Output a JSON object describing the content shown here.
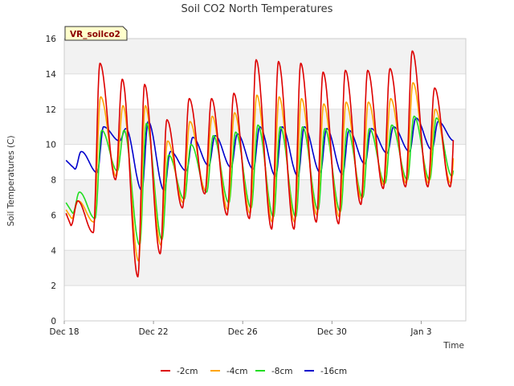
{
  "chart_data": {
    "type": "line",
    "title": "Soil CO2 North Temperatures",
    "badge": "VR_soilco2",
    "xlabel": "Time",
    "ylabel": "Soil Temperatures (C)",
    "ylim": [
      0,
      16
    ],
    "yticks": [
      "0",
      "2",
      "4",
      "6",
      "8",
      "10",
      "12",
      "14",
      "16"
    ],
    "xlim_days": [
      0,
      18
    ],
    "xticks": [
      {
        "label": "Dec 18",
        "day": 0
      },
      {
        "label": "Dec 22",
        "day": 4
      },
      {
        "label": "Dec 26",
        "day": 8
      },
      {
        "label": "Dec 30",
        "day": 12
      },
      {
        "label": "Jan 3",
        "day": 16
      }
    ],
    "grid": true,
    "legend_position": "bottom",
    "daily_extremes": {
      "days": [
        0,
        1,
        2,
        3,
        4,
        5,
        6,
        7,
        8,
        9,
        10,
        11,
        12,
        13,
        14,
        15,
        16,
        17
      ],
      "min_-2cm": [
        5.4,
        5.0,
        8.0,
        2.5,
        3.8,
        6.4,
        7.2,
        6.0,
        5.8,
        5.2,
        5.2,
        5.6,
        5.5,
        6.6,
        7.5,
        7.6,
        7.6,
        7.6
      ],
      "max_-2cm": [
        6.8,
        14.6,
        13.7,
        13.4,
        11.4,
        12.6,
        12.6,
        12.9,
        14.8,
        14.7,
        14.6,
        14.1,
        14.2,
        14.2,
        14.3,
        15.3,
        13.2,
        13.5
      ],
      "min_-4cm": [
        5.8,
        5.6,
        8.2,
        3.4,
        4.3,
        6.7,
        7.4,
        6.3,
        6.1,
        5.6,
        5.6,
        6.0,
        5.9,
        6.9,
        7.7,
        7.8,
        7.8,
        7.8
      ],
      "max_-4cm": [
        6.8,
        12.7,
        12.2,
        12.2,
        10.2,
        11.3,
        11.6,
        11.8,
        12.8,
        12.7,
        12.6,
        12.3,
        12.4,
        12.4,
        12.6,
        13.5,
        12.0,
        12.6
      ],
      "min_-8cm": [
        6.1,
        5.8,
        8.5,
        4.3,
        4.6,
        6.9,
        7.3,
        6.7,
        6.4,
        5.9,
        5.9,
        6.3,
        6.2,
        7.0,
        7.8,
        8.0,
        8.0,
        8.2
      ],
      "max_-8cm": [
        7.3,
        10.8,
        10.8,
        11.2,
        9.4,
        10.0,
        10.5,
        10.7,
        11.1,
        11.0,
        11.0,
        10.9,
        10.9,
        10.9,
        11.1,
        11.6,
        11.5,
        11.6
      ],
      "min_-16cm": [
        8.6,
        8.4,
        10.2,
        7.4,
        7.4,
        8.5,
        8.8,
        8.7,
        8.6,
        8.2,
        8.2,
        8.4,
        8.3,
        8.9,
        9.5,
        9.6,
        9.7,
        10.2
      ],
      "max_-16cm": [
        9.6,
        11.0,
        10.9,
        11.3,
        9.6,
        10.4,
        10.5,
        10.6,
        11.0,
        11.0,
        11.0,
        10.9,
        10.8,
        10.9,
        11.0,
        11.5,
        11.3,
        11.6
      ]
    },
    "series": [
      {
        "name": "-2cm",
        "color": "#dd0000",
        "depth_index": 0
      },
      {
        "name": "-4cm",
        "color": "#ffa500",
        "depth_index": 1
      },
      {
        "name": "-8cm",
        "color": "#22dd22",
        "depth_index": 2
      },
      {
        "name": "-16cm",
        "color": "#0000cc",
        "depth_index": 3
      }
    ]
  }
}
